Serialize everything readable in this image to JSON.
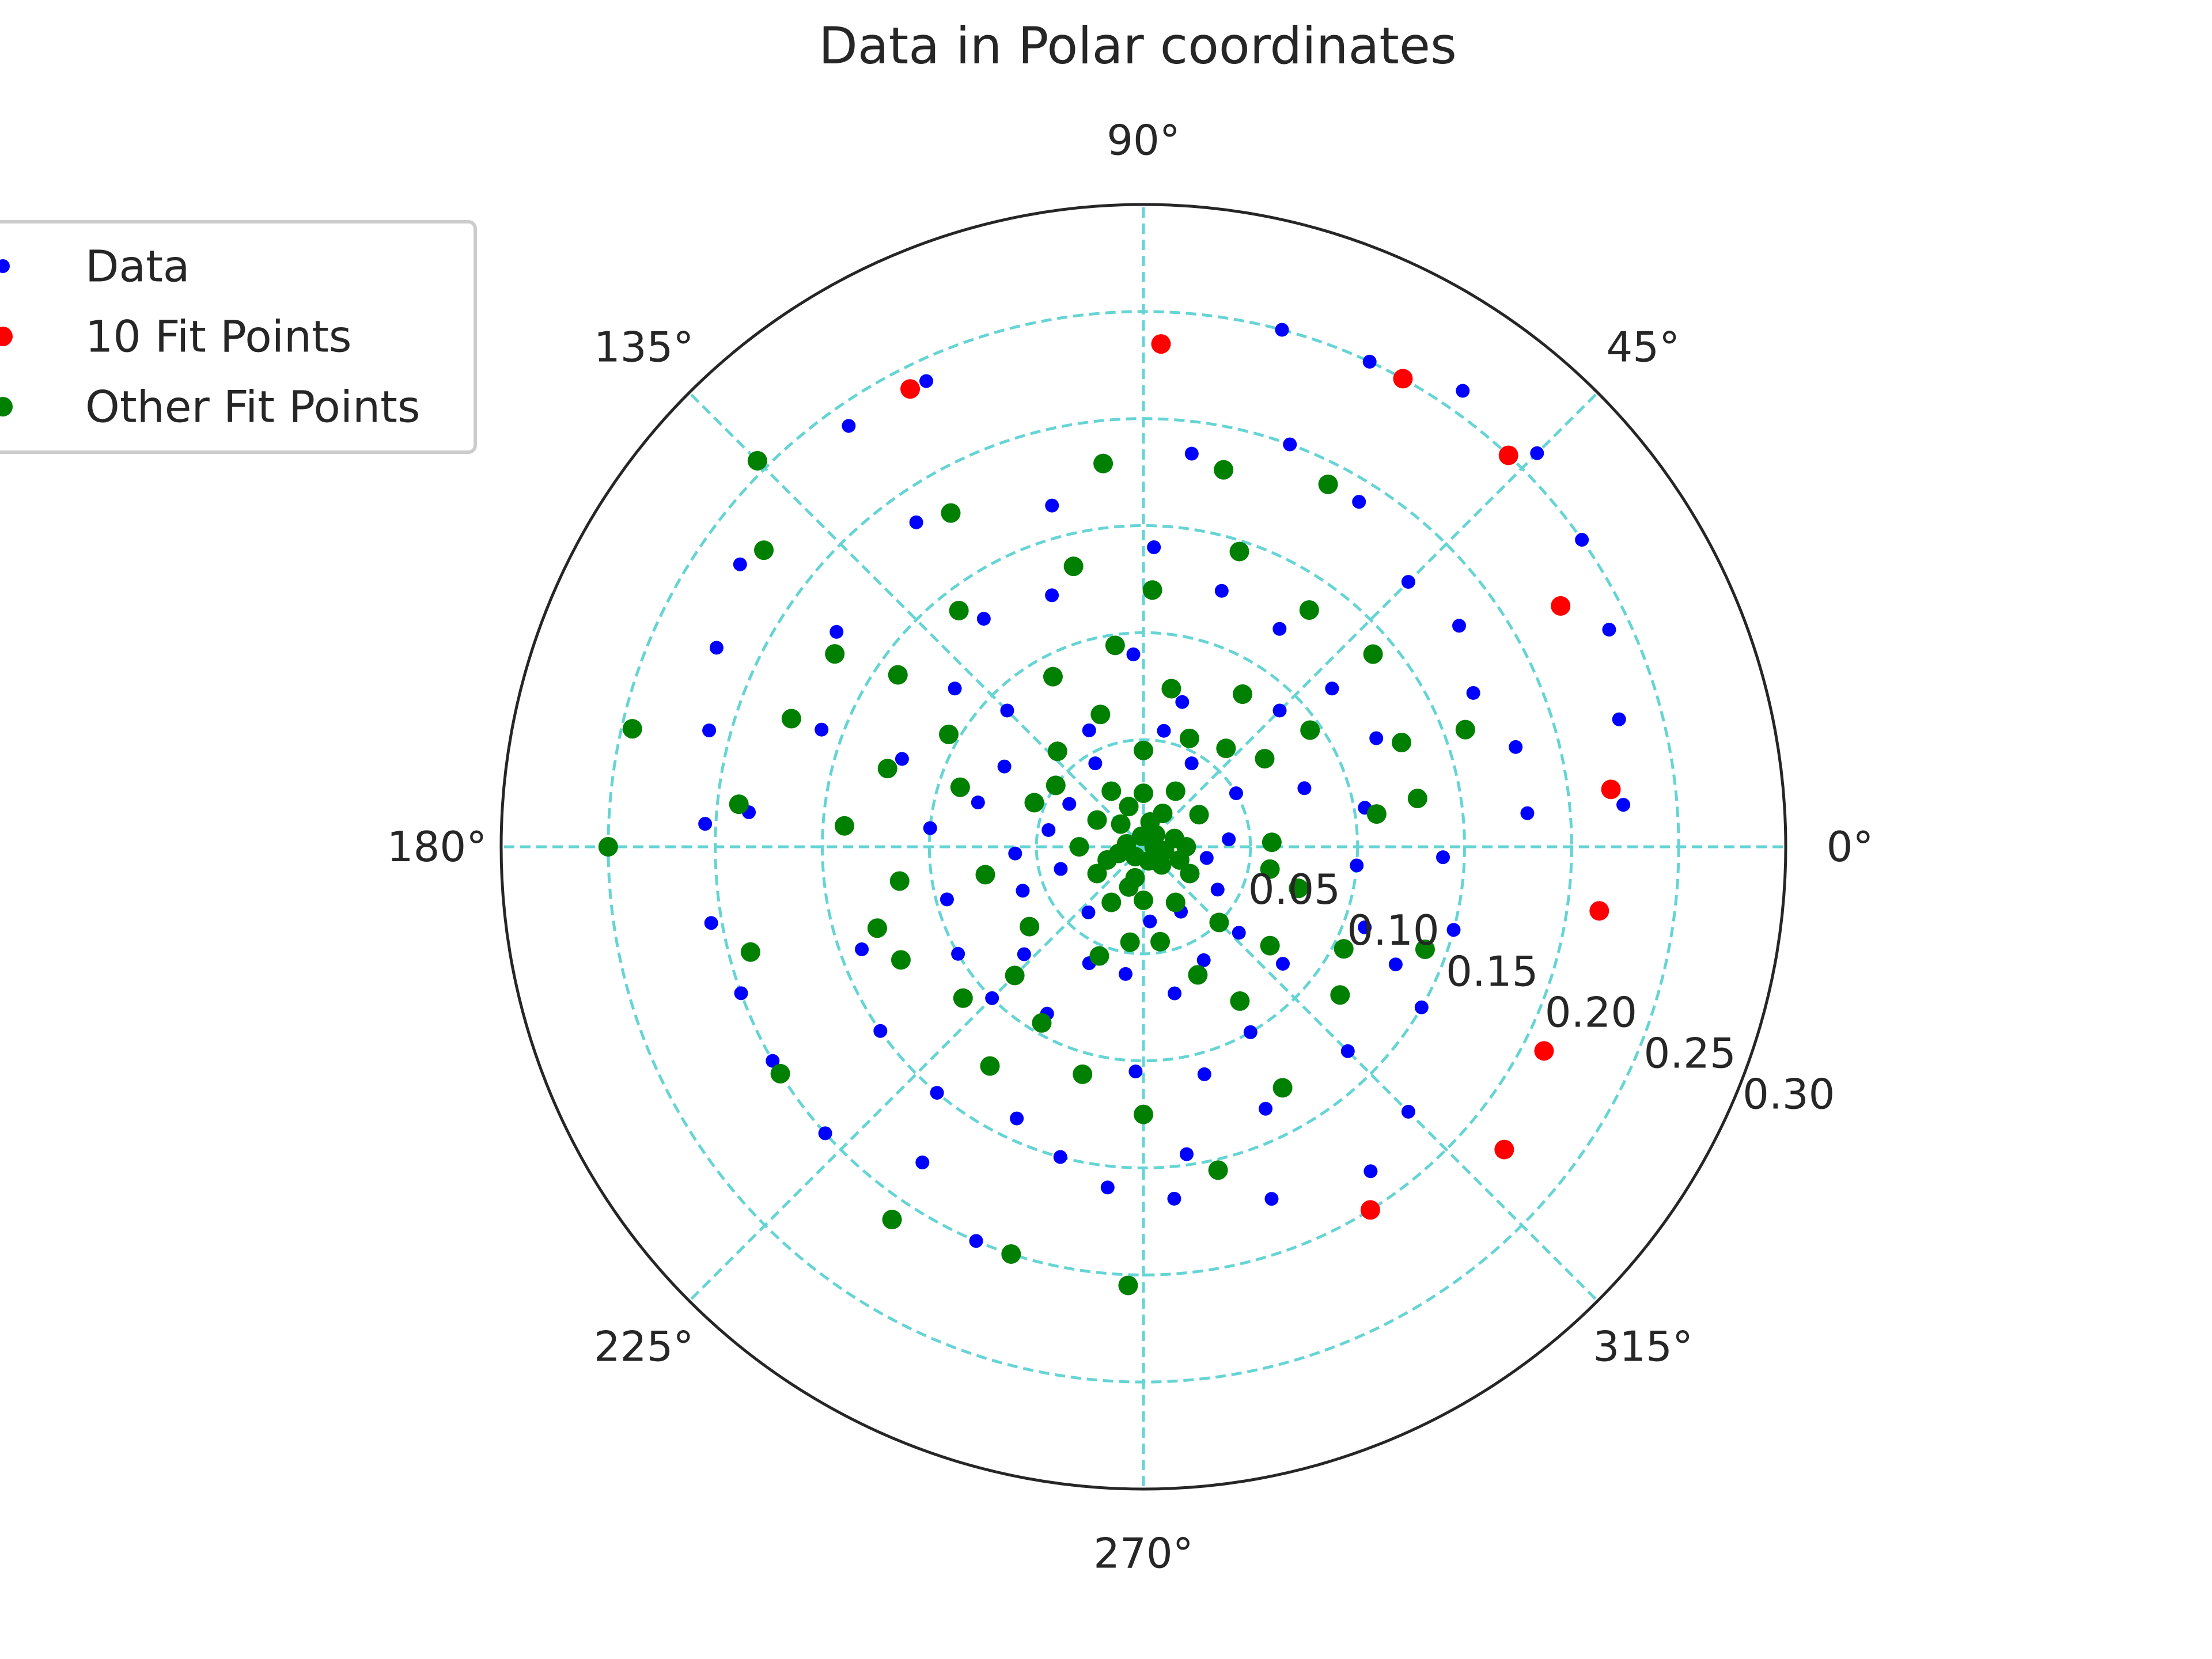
{
  "chart_data": {
    "type": "scatter",
    "projection": "polar",
    "title": "Data in Polar coordinates",
    "angle_unit": "degrees",
    "theta_ticks": [
      0,
      45,
      90,
      135,
      180,
      225,
      270,
      315
    ],
    "theta_tick_labels": [
      "0°",
      "45°",
      "90°",
      "135°",
      "180°",
      "225°",
      "270°",
      "315°"
    ],
    "r_ticks": [
      0.05,
      0.1,
      0.15,
      0.2,
      0.25,
      0.3
    ],
    "r_tick_labels": [
      "0.05",
      "0.10",
      "0.15",
      "0.20",
      "0.25",
      "0.30"
    ],
    "rlim": [
      0,
      0.3
    ],
    "r_label_angle": 337.5,
    "grid": true,
    "legend_position": "upper-left",
    "colors": {
      "Data": "#0000ff",
      "10 Fit Points": "#ff0000",
      "Other Fit Points": "#008000",
      "grid": "#66d4d4",
      "frame": "#262626"
    },
    "series": [
      {
        "name": "Data",
        "marker": "small-dot",
        "points": [
          [
            5,
            0.225
          ],
          [
            15,
            0.23
          ],
          [
            25,
            0.24
          ],
          [
            35,
            0.25
          ],
          [
            45,
            0.26
          ],
          [
            55,
            0.26
          ],
          [
            65,
            0.25
          ],
          [
            75,
            0.25
          ],
          [
            88,
            0.235
          ],
          [
            115,
            0.24
          ],
          [
            125,
            0.24
          ],
          [
            145,
            0.23
          ],
          [
            155,
            0.22
          ],
          [
            165,
            0.21
          ],
          [
            177,
            0.205
          ],
          [
            190,
            0.205
          ],
          [
            200,
            0.2
          ],
          [
            210,
            0.2
          ],
          [
            222,
            0.2
          ],
          [
            235,
            0.18
          ],
          [
            247,
            0.2
          ],
          [
            264,
            0.16
          ],
          [
            275,
            0.165
          ],
          [
            290,
            0.175
          ],
          [
            305,
            0.185
          ],
          [
            315,
            0.175
          ],
          [
            330,
            0.15
          ],
          [
            345,
            0.15
          ],
          [
            358,
            0.14
          ],
          [
            5,
            0.18
          ],
          [
            15,
            0.18
          ],
          [
            25,
            0.17
          ],
          [
            35,
            0.18
          ],
          [
            45,
            0.175
          ],
          [
            58,
            0.19
          ],
          [
            70,
            0.2
          ],
          [
            83,
            0.185
          ],
          [
            105,
            0.165
          ],
          [
            125,
            0.185
          ],
          [
            145,
            0.175
          ],
          [
            160,
            0.16
          ],
          [
            175,
            0.185
          ],
          [
            200,
            0.14
          ],
          [
            215,
            0.15
          ],
          [
            230,
            0.15
          ],
          [
            245,
            0.14
          ],
          [
            255,
            0.15
          ],
          [
            278,
            0.145
          ],
          [
            295,
            0.135
          ],
          [
            315,
            0.135
          ],
          [
            335,
            0.13
          ],
          [
            340,
            0.11
          ],
          [
            355,
            0.1
          ],
          [
            10,
            0.105
          ],
          [
            25,
            0.12
          ],
          [
            40,
            0.115
          ],
          [
            58,
            0.12
          ],
          [
            73,
            0.125
          ],
          [
            88,
            0.14
          ],
          [
            110,
            0.125
          ],
          [
            125,
            0.13
          ],
          [
            140,
            0.115
          ],
          [
            160,
            0.12
          ],
          [
            175,
            0.1
          ],
          [
            195,
            0.095
          ],
          [
            210,
            0.1
          ],
          [
            225,
            0.1
          ],
          [
            240,
            0.09
          ],
          [
            268,
            0.105
          ],
          [
            285,
            0.11
          ],
          [
            300,
            0.1
          ],
          [
            320,
            0.085
          ],
          [
            20,
            0.08
          ],
          [
            45,
            0.09
          ],
          [
            75,
            0.07
          ],
          [
            93,
            0.09
          ],
          [
            115,
            0.06
          ],
          [
            135,
            0.09
          ],
          [
            150,
            0.075
          ],
          [
            165,
            0.08
          ],
          [
            183,
            0.06
          ],
          [
            200,
            0.06
          ],
          [
            222,
            0.075
          ],
          [
            245,
            0.06
          ],
          [
            262,
            0.06
          ],
          [
            282,
            0.07
          ],
          [
            298,
            0.06
          ],
          [
            318,
            0.06
          ],
          [
            350,
            0.03
          ],
          [
            5,
            0.04
          ],
          [
            30,
            0.05
          ],
          [
            60,
            0.045
          ],
          [
            80,
            0.055
          ],
          [
            120,
            0.045
          ],
          [
            150,
            0.04
          ],
          [
            170,
            0.045
          ],
          [
            195,
            0.04
          ],
          [
            230,
            0.04
          ],
          [
            275,
            0.035
          ],
          [
            300,
            0.035
          ],
          [
            330,
            0.04
          ]
        ]
      },
      {
        "name": "10 Fit Points",
        "marker": "dot",
        "points": [
          [
            7,
            0.22
          ],
          [
            30,
            0.225
          ],
          [
            47,
            0.25
          ],
          [
            61,
            0.25
          ],
          [
            88,
            0.235
          ],
          [
            117,
            0.24
          ],
          [
            320,
            0.22
          ],
          [
            302,
            0.2
          ],
          [
            333,
            0.21
          ],
          [
            352,
            0.215
          ]
        ]
      },
      {
        "name": "Other Fit Points",
        "marker": "dot",
        "points": [
          [
            135,
            0.255
          ],
          [
            142,
            0.225
          ],
          [
            167,
            0.245
          ],
          [
            180,
            0.25
          ],
          [
            195,
            0.19
          ],
          [
            212,
            0.2
          ],
          [
            236,
            0.21
          ],
          [
            252,
            0.2
          ],
          [
            268,
            0.205
          ],
          [
            63,
            0.19
          ],
          [
            78,
            0.18
          ],
          [
            96,
            0.18
          ],
          [
            120,
            0.18
          ],
          [
            148,
            0.17
          ],
          [
            160,
            0.175
          ],
          [
            174,
            0.19
          ],
          [
            40,
            0.14
          ],
          [
            55,
            0.135
          ],
          [
            72,
            0.145
          ],
          [
            88,
            0.12
          ],
          [
            104,
            0.135
          ],
          [
            128,
            0.14
          ],
          [
            145,
            0.14
          ],
          [
            163,
            0.125
          ],
          [
            176,
            0.14
          ],
          [
            10,
            0.13
          ],
          [
            22,
            0.13
          ],
          [
            35,
            0.095
          ],
          [
            57,
            0.085
          ],
          [
            98,
            0.095
          ],
          [
            118,
            0.09
          ],
          [
            150,
            0.105
          ],
          [
            162,
            0.09
          ],
          [
            2,
            0.06
          ],
          [
            8,
            0.11
          ],
          [
            20,
            0.16
          ],
          [
            340,
            0.14
          ],
          [
            333,
            0.105
          ],
          [
            323,
            0.115
          ],
          [
            300,
            0.13
          ],
          [
            283,
            0.155
          ],
          [
            302,
            0.085
          ],
          [
            270,
            0.125
          ],
          [
            255,
            0.11
          ],
          [
            235,
            0.125
          ],
          [
            220,
            0.11
          ],
          [
            205,
            0.125
          ],
          [
            197,
            0.13
          ],
          [
            225,
            0.085
          ],
          [
            240,
            0.095
          ],
          [
            215,
            0.065
          ],
          [
            190,
            0.075
          ],
          [
            188,
            0.115
          ],
          [
            345,
            0.075
          ],
          [
            350,
            0.06
          ],
          [
            322,
            0.075
          ],
          [
            315,
            0.05
          ],
          [
            293,
            0.065
          ],
          [
            280,
            0.045
          ],
          [
            262,
            0.045
          ],
          [
            248,
            0.055
          ],
          [
            36,
            0.07
          ],
          [
            50,
            0.06
          ],
          [
            67,
            0.055
          ],
          [
            80,
            0.075
          ],
          [
            90,
            0.045
          ],
          [
            108,
            0.065
          ],
          [
            132,
            0.06
          ],
          [
            145,
            0.05
          ],
          [
            158,
            0.055
          ],
          [
            0,
            0.02
          ],
          [
            30,
            0.03
          ],
          [
            60,
            0.03
          ],
          [
            90,
            0.025
          ],
          [
            120,
            0.03
          ],
          [
            150,
            0.025
          ],
          [
            180,
            0.03
          ],
          [
            210,
            0.025
          ],
          [
            240,
            0.03
          ],
          [
            270,
            0.025
          ],
          [
            300,
            0.03
          ],
          [
            330,
            0.025
          ],
          [
            15,
            0.015
          ],
          [
            75,
            0.012
          ],
          [
            135,
            0.015
          ],
          [
            195,
            0.012
          ],
          [
            255,
            0.015
          ],
          [
            315,
            0.012
          ],
          [
            0,
            0.005
          ],
          [
            45,
            0.008
          ],
          [
            100,
            0.005
          ],
          [
            170,
            0.008
          ],
          [
            230,
            0.006
          ],
          [
            290,
            0.007
          ],
          [
            350,
            0.01
          ],
          [
            60,
            0.018
          ],
          [
            200,
            0.018
          ],
          [
            340,
            0.018
          ],
          [
            110,
            0.02
          ],
          [
            250,
            0.02
          ]
        ]
      }
    ]
  }
}
